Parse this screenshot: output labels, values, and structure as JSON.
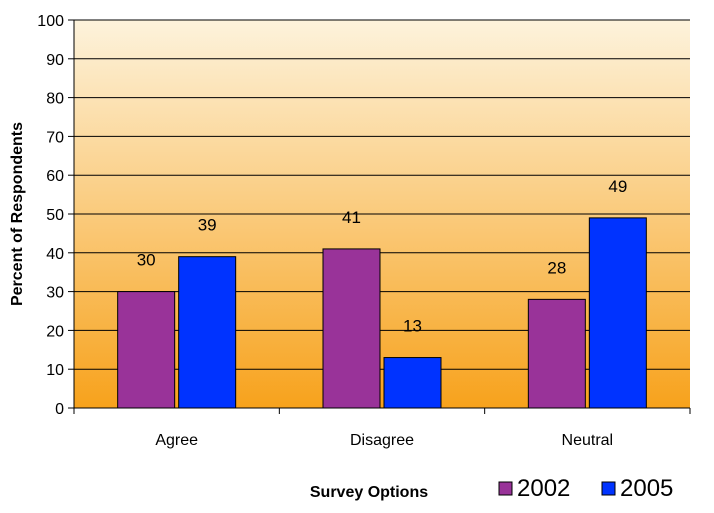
{
  "chart_data": {
    "type": "bar",
    "title": "",
    "xlabel": "Survey Options",
    "ylabel": "Percent of Respondents",
    "categories": [
      "Agree",
      "Disagree",
      "Neutral"
    ],
    "series": [
      {
        "name": "2002",
        "values": [
          30,
          41,
          28
        ],
        "color": "#993399"
      },
      {
        "name": "2005",
        "values": [
          39,
          13,
          49
        ],
        "color": "#0033ff"
      }
    ],
    "ylim": [
      0,
      100
    ],
    "yticks": [
      0,
      10,
      20,
      30,
      40,
      50,
      60,
      70,
      80,
      90,
      100
    ],
    "grid": true,
    "legend_position": "bottom-right",
    "plot_background": {
      "top": "#fdf3dc",
      "bottom": "#f7a21c"
    }
  }
}
